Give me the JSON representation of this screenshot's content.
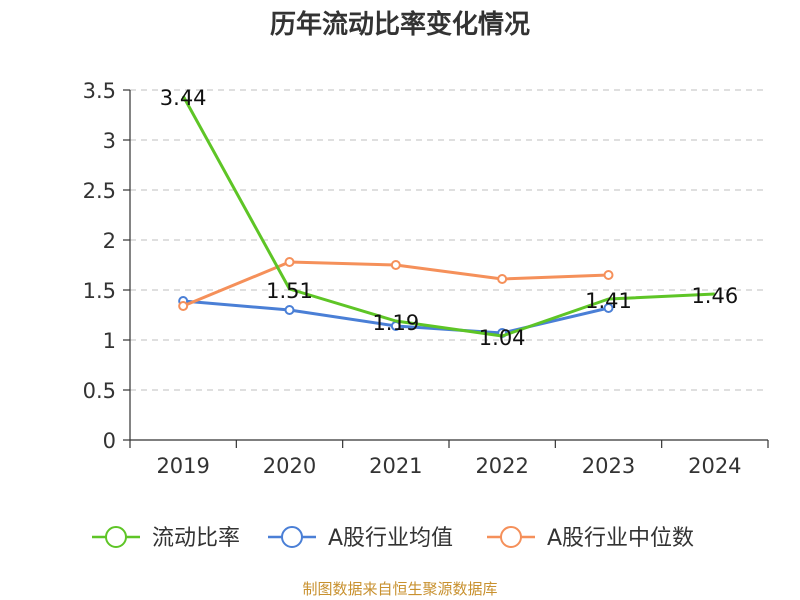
{
  "chart_data": {
    "type": "line",
    "title": "历年流动比率变化情况",
    "categories": [
      "2019",
      "2020",
      "2021",
      "2022",
      "2023",
      "2024"
    ],
    "ylim": [
      0,
      3.5
    ],
    "yticks": [
      "0",
      "0.5",
      "1",
      "1.5",
      "2",
      "2.5",
      "3",
      "3.5"
    ],
    "grid": true,
    "legend_position": "bottom",
    "series": [
      {
        "name": "流动比率",
        "color": "#5ec526",
        "values": [
          3.44,
          1.51,
          1.19,
          1.04,
          1.41,
          1.46
        ],
        "labels": [
          "3.44",
          "1.51",
          "1.19",
          "1.04",
          "1.41",
          "1.46"
        ]
      },
      {
        "name": "A股行业均值",
        "color": "#4a7fd6",
        "values": [
          1.39,
          1.3,
          1.14,
          1.07,
          1.32,
          null
        ]
      },
      {
        "name": "A股行业中位数",
        "color": "#f5905a",
        "values": [
          1.34,
          1.78,
          1.75,
          1.61,
          1.65,
          null
        ]
      }
    ]
  },
  "source": "制图数据来自恒生聚源数据库"
}
